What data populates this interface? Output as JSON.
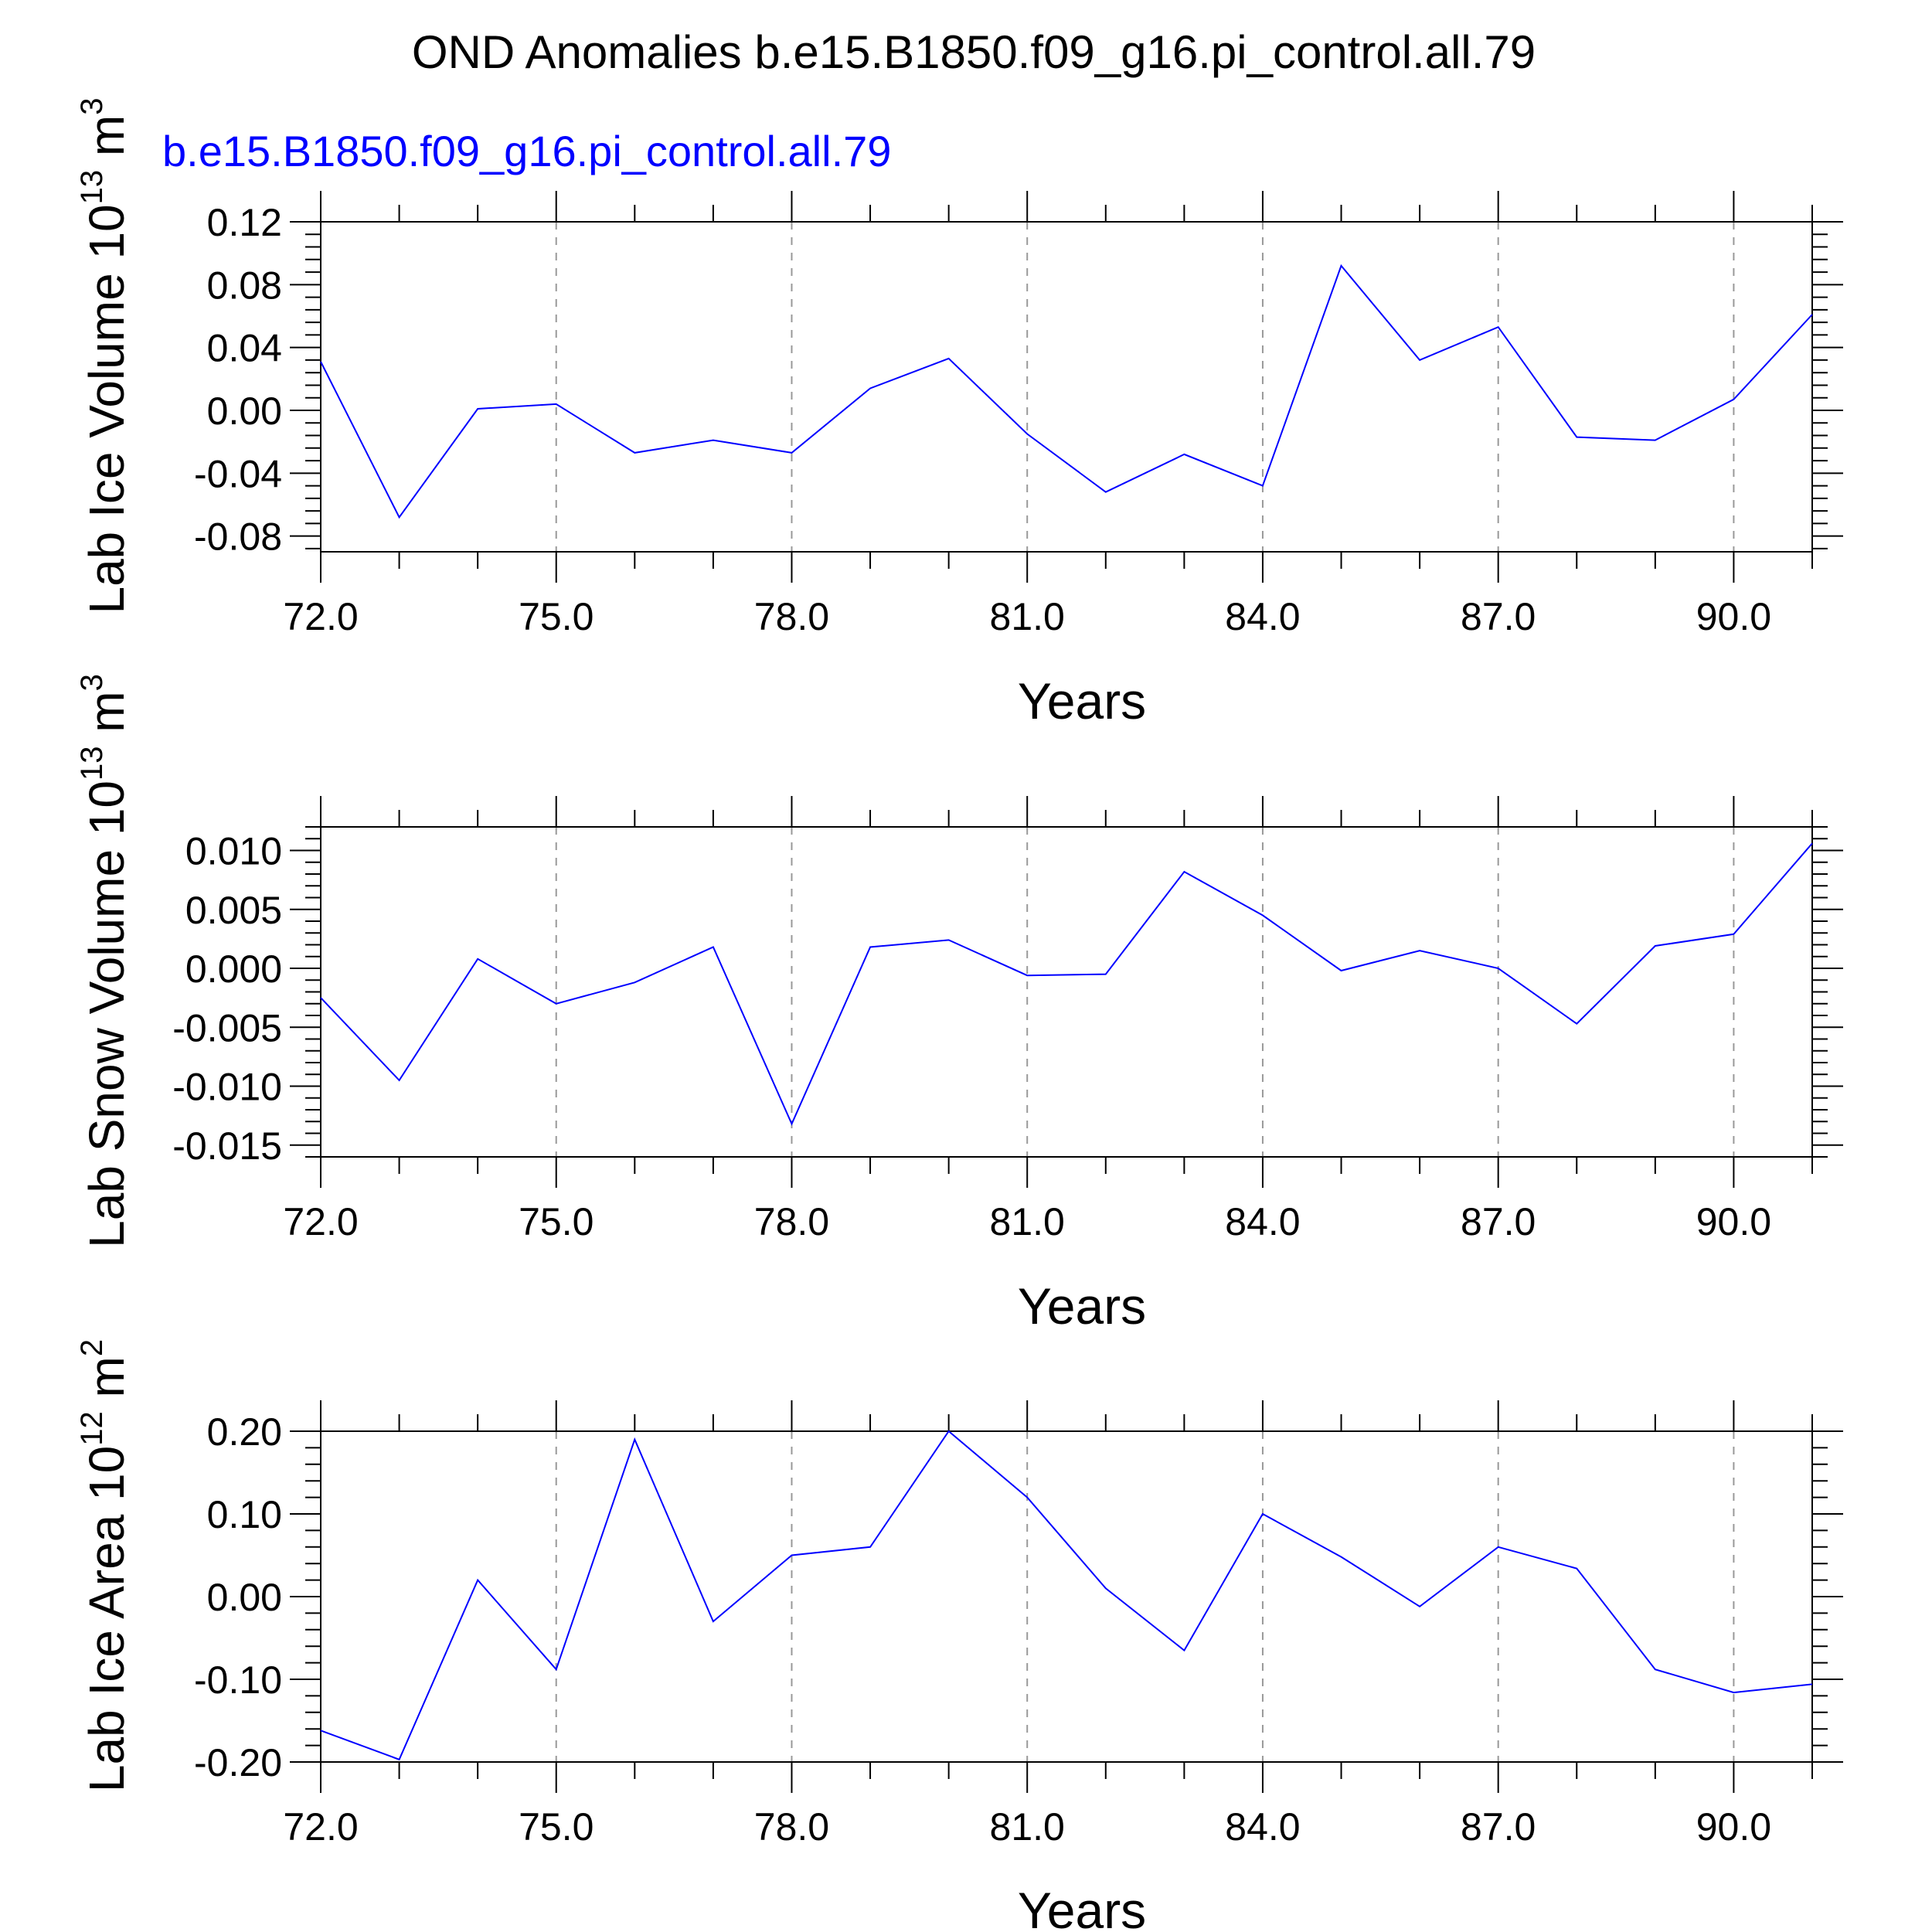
{
  "title": "OND Anomalies b.e15.B1850.f09_g16.pi_control.all.79",
  "series_label": "b.e15.B1850.f09_g16.pi_control.all.79",
  "colors": {
    "series": "#0000ff",
    "axis": "#000000",
    "grid": "#999999",
    "background": "#ffffff"
  },
  "chart_data": [
    {
      "type": "line",
      "ylabel_main": "Lab Ice Volume 10",
      "ylabel_exp": "13",
      "ylabel_unit": " m",
      "ylabel_unit_exp": "3",
      "xlabel": "Years",
      "xlim": [
        72,
        91
      ],
      "ylim": [
        -0.09,
        0.12
      ],
      "xticks": [
        72,
        75,
        78,
        81,
        84,
        87,
        90
      ],
      "xtick_labels": [
        "72.0",
        "75.0",
        "78.0",
        "81.0",
        "84.0",
        "87.0",
        "90.0"
      ],
      "yticks": [
        -0.08,
        -0.04,
        0.0,
        0.04,
        0.08,
        0.12
      ],
      "ytick_labels": [
        "-0.08",
        "-0.04",
        "0.00",
        "0.04",
        "0.08",
        "0.12"
      ],
      "grid": "vertical dashed",
      "x": [
        72,
        73,
        74,
        75,
        76,
        77,
        78,
        79,
        80,
        81,
        82,
        83,
        84,
        85,
        86,
        87,
        88,
        89,
        90,
        91
      ],
      "values": [
        0.031,
        -0.068,
        0.001,
        0.004,
        -0.027,
        -0.019,
        -0.027,
        0.014,
        0.033,
        -0.015,
        -0.052,
        -0.028,
        -0.048,
        0.092,
        0.032,
        0.053,
        -0.017,
        -0.019,
        0.007,
        0.061
      ]
    },
    {
      "type": "line",
      "ylabel_main": "Lab Snow Volume 10",
      "ylabel_exp": "13",
      "ylabel_unit": " m",
      "ylabel_unit_exp": "3",
      "xlabel": "Years",
      "xlim": [
        72,
        91
      ],
      "ylim": [
        -0.016,
        0.012
      ],
      "xticks": [
        72,
        75,
        78,
        81,
        84,
        87,
        90
      ],
      "xtick_labels": [
        "72.0",
        "75.0",
        "78.0",
        "81.0",
        "84.0",
        "87.0",
        "90.0"
      ],
      "yticks": [
        -0.015,
        -0.01,
        -0.005,
        0.0,
        0.005,
        0.01
      ],
      "ytick_labels": [
        "-0.015",
        "-0.010",
        "-0.005",
        "0.000",
        "0.005",
        "0.010"
      ],
      "grid": "vertical dashed",
      "x": [
        72,
        73,
        74,
        75,
        76,
        77,
        78,
        79,
        80,
        81,
        82,
        83,
        84,
        85,
        86,
        87,
        88,
        89,
        90,
        91
      ],
      "values": [
        -0.0025,
        -0.0095,
        0.0008,
        -0.003,
        -0.0012,
        0.0018,
        -0.0132,
        0.0018,
        0.0024,
        -0.0006,
        -0.0005,
        0.0082,
        0.0045,
        -0.0002,
        0.0015,
        0.0,
        -0.0047,
        0.0019,
        0.0029,
        0.0106
      ]
    },
    {
      "type": "line",
      "ylabel_main": "Lab Ice Area 10",
      "ylabel_exp": "12",
      "ylabel_unit": " m",
      "ylabel_unit_exp": "2",
      "xlabel": "Years",
      "xlim": [
        72,
        91
      ],
      "ylim": [
        -0.2,
        0.2
      ],
      "xticks": [
        72,
        75,
        78,
        81,
        84,
        87,
        90
      ],
      "xtick_labels": [
        "72.0",
        "75.0",
        "78.0",
        "81.0",
        "84.0",
        "87.0",
        "90.0"
      ],
      "yticks": [
        -0.2,
        -0.1,
        0.0,
        0.1,
        0.2
      ],
      "ytick_labels": [
        "-0.20",
        "-0.10",
        "0.00",
        "0.10",
        "0.20"
      ],
      "grid": "vertical dashed",
      "x": [
        72,
        73,
        74,
        75,
        76,
        77,
        78,
        79,
        80,
        81,
        82,
        83,
        84,
        85,
        86,
        87,
        88,
        89,
        90,
        91
      ],
      "values": [
        -0.162,
        -0.197,
        0.02,
        -0.088,
        0.19,
        -0.03,
        0.05,
        0.06,
        0.2,
        0.12,
        0.01,
        -0.065,
        0.1,
        0.048,
        -0.012,
        0.06,
        0.034,
        -0.088,
        -0.116,
        -0.106
      ]
    }
  ]
}
